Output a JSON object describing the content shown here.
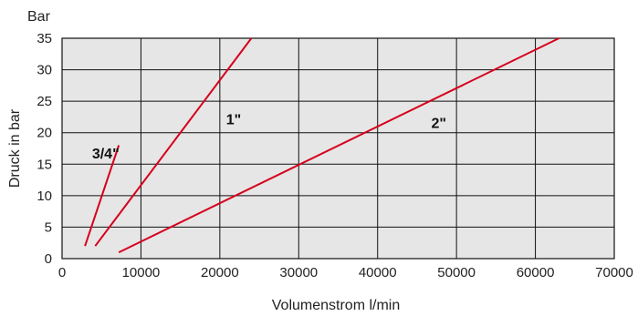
{
  "chart_data": {
    "type": "line",
    "title": "",
    "y_unit": "Bar",
    "xlabel": "Volumenstrom l/min",
    "ylabel": "Druck in bar",
    "xlim": [
      0,
      70000
    ],
    "ylim": [
      0,
      35
    ],
    "x_ticks": [
      0,
      10000,
      20000,
      30000,
      40000,
      50000,
      60000,
      70000
    ],
    "y_ticks": [
      0,
      5,
      10,
      15,
      20,
      25,
      30,
      35
    ],
    "grid": true,
    "line_color": "#d6001c",
    "plot_background": "#e6e6e6",
    "series": [
      {
        "name": "3/4\"",
        "x": [
          2900,
          7200
        ],
        "y": [
          2,
          18
        ],
        "label_at": [
          3800,
          16.8
        ]
      },
      {
        "name": "1\"",
        "x": [
          4200,
          24000
        ],
        "y": [
          2,
          35
        ],
        "label_at": [
          20800,
          22.2
        ]
      },
      {
        "name": "2\"",
        "x": [
          7200,
          63000
        ],
        "y": [
          1,
          35
        ],
        "label_at": [
          46800,
          21.6
        ]
      }
    ]
  }
}
